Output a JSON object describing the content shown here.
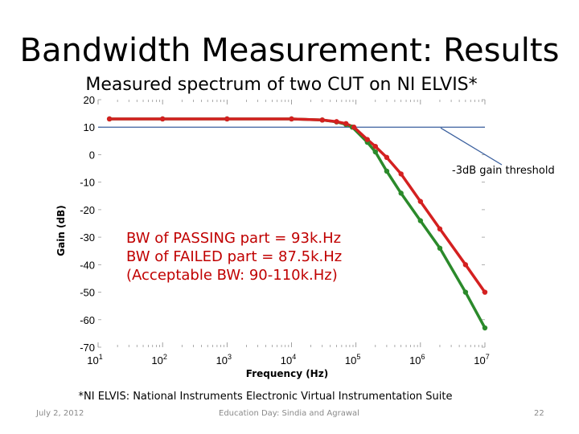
{
  "slide": {
    "title": "Bandwidth Measurement: Results",
    "subtitle": "Measured spectrum of two CUT on NI ELVIS*",
    "footnote": "*NI ELVIS: National Instruments Electronic Virtual Instrumentation Suite",
    "date": "July 2, 2012",
    "event": "Education Day: Sindia and Agrawal",
    "page_number": "22"
  },
  "colors": {
    "passing": "#d42020",
    "failed": "#2b8a2b",
    "threshold": "#3a5f9e",
    "annotation": "#c00000"
  },
  "chart_data": {
    "type": "line",
    "xscale": "log",
    "xlim": [
      10,
      10000000
    ],
    "ylim": [
      -70,
      20
    ],
    "xlabel": "Frequency (Hz)",
    "ylabel": "Gain (dB)",
    "x_ticks": [
      {
        "base": "10",
        "exp": "1"
      },
      {
        "base": "10",
        "exp": "2"
      },
      {
        "base": "10",
        "exp": "3"
      },
      {
        "base": "10",
        "exp": "4"
      },
      {
        "base": "10",
        "exp": "5"
      },
      {
        "base": "10",
        "exp": "6"
      },
      {
        "base": "10",
        "exp": "7"
      }
    ],
    "y_ticks": [
      "20",
      "10",
      "0",
      "-10",
      "-20",
      "-30",
      "-40",
      "-50",
      "-60",
      "-70"
    ],
    "threshold": {
      "value": 10,
      "label": "-3dB gain threshold"
    },
    "series": [
      {
        "name": "PASSING part",
        "x": [
          15,
          100,
          1000,
          10000,
          30000,
          50000,
          70000,
          93000,
          150000,
          200000,
          300000,
          500000,
          1000000,
          2000000,
          5000000,
          10000000
        ],
        "y": [
          13,
          13,
          13,
          13,
          12.6,
          12,
          11.3,
          10,
          5.5,
          3,
          -1,
          -7,
          -17,
          -27,
          -40,
          -50
        ]
      },
      {
        "name": "FAILED part",
        "x": [
          15,
          100,
          1000,
          10000,
          30000,
          50000,
          70000,
          87500,
          150000,
          200000,
          300000,
          500000,
          1000000,
          2000000,
          5000000,
          10000000
        ],
        "y": [
          13,
          13,
          13,
          13,
          12.6,
          11.9,
          11,
          10,
          4.5,
          1,
          -6,
          -14,
          -24,
          -34,
          -50,
          -63
        ]
      }
    ],
    "annotations": [
      "BW of PASSING part = 93k.Hz",
      "BW of FAILED part = 87.5k.Hz",
      "(Acceptable BW: 90-110k.Hz)"
    ]
  }
}
